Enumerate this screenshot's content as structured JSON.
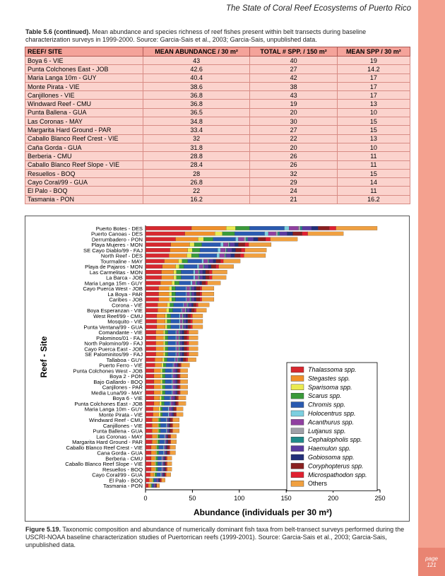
{
  "header": {
    "title": "The State of Coral Reef Ecosystems of Puerto Rico"
  },
  "page": {
    "label": "page",
    "number": "121"
  },
  "table": {
    "caption_label": "Table 5.6 (continued).",
    "caption": "Mean abundance and species richness of reef fishes present within belt transects during baseline characterization surveys in 1999-2000.  Source:  Garcia-Sais et al., 2003; Garcia-Sais, unpublished data.",
    "columns": [
      "REEF/ SITE",
      "MEAN ABUNDANCE / 30 m²",
      "TOTAL # SPP. / 150 m²",
      "MEAN SPP / 30 m²"
    ],
    "rows": [
      [
        "Boya 6 - VIE",
        "43",
        "40",
        "19"
      ],
      [
        "Punta Colchones East - JOB",
        "42.6",
        "27",
        "14.2"
      ],
      [
        "Maria Langa 10m - GUY",
        "40.4",
        "42",
        "17"
      ],
      [
        "Monte Pirata - VIE",
        "38.6",
        "38",
        "17"
      ],
      [
        "Canjillones - VIE",
        "36.8",
        "43",
        "17"
      ],
      [
        "Windward Reef - CMU",
        "36.8",
        "19",
        "13"
      ],
      [
        "Punta Ballena - GUA",
        "36.5",
        "20",
        "10"
      ],
      [
        "Las Coronas - MAY",
        "34.8",
        "30",
        "15"
      ],
      [
        "Margarita Hard Ground - PAR",
        "33.4",
        "27",
        "15"
      ],
      [
        "Caballo Blanco Reef Crest - VIE",
        "32",
        "22",
        "13"
      ],
      [
        "Caña Gorda - GUA",
        "31.8",
        "20",
        "10"
      ],
      [
        "Berberia - CMU",
        "28.8",
        "26",
        "11"
      ],
      [
        "Caballo Blanco Reef Slope - VIE",
        "28.4",
        "26",
        "11"
      ],
      [
        "Resuellos - BOQ",
        "28",
        "32",
        "15"
      ],
      [
        "Cayo Coral/99 - GUA",
        "26.8",
        "29",
        "14"
      ],
      [
        "El Palo - BOQ",
        "22",
        "24",
        "11"
      ],
      [
        "Tasmania - PON",
        "16.2",
        "21",
        "16.2"
      ]
    ]
  },
  "figure": {
    "caption_label": "Figure 5.19.",
    "caption": "Taxonomic composition and abundance of numerically dominant fish taxa from belt-transect surveys performed during the USCRI-NOAA baseline characterization studies of Puertorrican reefs (1999-2001).  Source:  Garcia-Sais et al., 2003; Garcia-Sais, unpublished data."
  },
  "chart_data": {
    "type": "stacked-barh",
    "x_label": "Abundance (individuals per 30 m²)",
    "y_label": "Reef - Site",
    "xlim": [
      0,
      250
    ],
    "xticks": [
      0,
      50,
      100,
      150,
      200,
      250
    ],
    "categories": [
      "Puerto Botes - DES",
      "Puerto Canoas - DES",
      "Derrumbadero - PON",
      "Playa Mujeres - MON",
      "SE Cayo Diablo/99 - FAJ",
      "North Reef - DES",
      "Tourmaline - MAY",
      "Playa de Pajaros - MON",
      "Las Carmelitas - MON",
      "La Barca - JOB",
      "Maria Langa 15m - GUY",
      "Cayo Puerca West - JOB",
      "La Boya - PAR",
      "Caribes - JOB",
      "Corona - VIE",
      "Boya Esperanzan - VIE",
      "West Reef/99 - CMU",
      "Mosquito - VIE",
      "Punta Ventana/99 - GUA",
      "Comandante - VIE",
      "Palominos/01 - FAJ",
      "North Palomino/99 - FAJ",
      "Cayo Puerca East - JOB",
      "SE Palominitos/99 - FAJ",
      "Tallaboa - GUY",
      "Puerto Ferro - VIE",
      "Punta Colchones West - JOB",
      "Boya 2 - PON",
      "Bajo Gallardo - BOQ",
      "Canjilones - PAR",
      "Media Luna/99 - MAY",
      "Boya 6 - VIE",
      "Punta Colchones East - JOB",
      "Maria Langa 10m - GUY",
      "Monte Pirata - VIE",
      "Windward Reef - CMU",
      "Canjillones - VIE",
      "Punta Ballena - GUA",
      "Las Coronas - MAY",
      "Margarita Hard Ground - PAR",
      "Caballo Blanco Reef Crest - VIE",
      "Cana Gorda - GUA",
      "Berberia - CMU",
      "Caballo Blanco Reef Slope - VIE",
      "Resuellos - BOQ",
      "Cayo Coral/99 - GUA",
      "El Palo - BOQ",
      "Tasmania - PON"
    ],
    "series": [
      {
        "name": "Thalassoma spp.",
        "color": "#d7282f",
        "values": [
          49,
          42,
          32,
          27,
          26,
          25,
          20,
          18,
          17,
          17,
          16,
          14,
          14,
          14,
          13,
          13,
          12,
          12,
          12,
          11,
          11,
          11,
          11,
          11,
          10,
          10,
          9,
          9,
          9,
          9,
          9,
          9,
          9,
          8,
          8,
          7,
          7,
          7,
          7,
          7,
          6,
          6,
          6,
          6,
          6,
          5,
          4,
          3
        ]
      },
      {
        "name": "Stegastes spp.",
        "color": "#f0902a",
        "values": [
          37,
          32,
          24,
          20,
          19,
          19,
          15,
          14,
          13,
          13,
          12,
          11,
          11,
          11,
          10,
          9,
          9,
          9,
          9,
          8,
          8,
          8,
          8,
          8,
          8,
          7,
          7,
          7,
          7,
          7,
          7,
          6,
          6,
          6,
          6,
          6,
          6,
          6,
          5,
          5,
          5,
          5,
          4,
          4,
          4,
          4,
          3,
          2
        ]
      },
      {
        "name": "Sparisoma spp.",
        "color": "#eaea50",
        "values": [
          10,
          8,
          6,
          5,
          5,
          5,
          4,
          4,
          3,
          3,
          3,
          3,
          3,
          3,
          3,
          3,
          2,
          2,
          2,
          2,
          2,
          2,
          2,
          2,
          2,
          2,
          2,
          2,
          2,
          2,
          2,
          2,
          2,
          2,
          2,
          1,
          1,
          1,
          1,
          1,
          1,
          1,
          1,
          1,
          1,
          1,
          1,
          1
        ]
      },
      {
        "name": "Scarus spp.",
        "color": "#3a9a3a",
        "values": [
          15,
          13,
          10,
          8,
          8,
          8,
          6,
          5,
          5,
          5,
          5,
          4,
          4,
          4,
          4,
          4,
          4,
          4,
          4,
          3,
          3,
          3,
          3,
          3,
          3,
          3,
          3,
          3,
          3,
          3,
          3,
          3,
          3,
          2,
          2,
          2,
          2,
          2,
          2,
          2,
          2,
          2,
          2,
          2,
          2,
          2,
          1,
          1
        ]
      },
      {
        "name": "Chromis spp.",
        "color": "#2a5ab0",
        "values": [
          37,
          32,
          24,
          20,
          19,
          19,
          15,
          14,
          13,
          13,
          12,
          11,
          11,
          11,
          10,
          9,
          9,
          9,
          9,
          8,
          8,
          8,
          8,
          8,
          8,
          7,
          7,
          7,
          7,
          7,
          7,
          6,
          6,
          6,
          6,
          6,
          6,
          6,
          5,
          5,
          5,
          5,
          4,
          4,
          4,
          4,
          3,
          2
        ]
      },
      {
        "name": "Holocentrus spp.",
        "color": "#7ccfe0",
        "values": [
          5,
          4,
          3,
          3,
          3,
          3,
          2,
          2,
          2,
          2,
          2,
          1,
          1,
          1,
          1,
          1,
          1,
          1,
          1,
          1,
          1,
          1,
          1,
          1,
          1,
          1,
          1,
          1,
          1,
          1,
          1,
          1,
          1,
          1,
          1,
          1,
          1,
          1,
          1,
          1,
          1,
          1,
          1,
          1,
          1,
          1,
          0,
          0
        ]
      },
      {
        "name": "Acanthurus spp.",
        "color": "#9040a0",
        "values": [
          10,
          8,
          6,
          5,
          5,
          5,
          4,
          4,
          3,
          3,
          3,
          3,
          3,
          3,
          3,
          3,
          2,
          2,
          2,
          2,
          2,
          2,
          2,
          2,
          2,
          2,
          2,
          2,
          2,
          2,
          2,
          2,
          2,
          2,
          2,
          1,
          1,
          1,
          1,
          1,
          1,
          1,
          1,
          1,
          1,
          1,
          1,
          1
        ]
      },
      {
        "name": "Lutjanus spp.",
        "color": "#a0a0a8",
        "values": [
          2,
          2,
          2,
          1,
          1,
          1,
          1,
          1,
          1,
          1,
          1,
          1,
          1,
          1,
          1,
          1,
          1,
          1,
          1,
          1,
          1,
          1,
          1,
          1,
          1,
          0,
          0,
          0,
          0,
          0,
          0,
          0,
          0,
          0,
          0,
          0,
          0,
          0,
          0,
          0,
          0,
          0,
          0,
          0,
          0,
          0,
          0,
          0
        ]
      },
      {
        "name": "Cephalopholis spp.",
        "color": "#208a8a",
        "values": [
          2,
          2,
          2,
          1,
          1,
          1,
          1,
          1,
          1,
          1,
          1,
          1,
          1,
          1,
          1,
          1,
          1,
          1,
          1,
          1,
          1,
          1,
          1,
          1,
          1,
          0,
          0,
          0,
          0,
          0,
          0,
          0,
          0,
          0,
          0,
          0,
          0,
          0,
          0,
          0,
          0,
          0,
          0,
          0,
          0,
          0,
          0,
          0
        ]
      },
      {
        "name": "Haemulon spp.",
        "color": "#5a3aa0",
        "values": [
          10,
          8,
          6,
          5,
          5,
          5,
          4,
          4,
          3,
          3,
          3,
          3,
          3,
          3,
          3,
          3,
          2,
          2,
          2,
          2,
          2,
          2,
          2,
          2,
          2,
          2,
          2,
          2,
          2,
          2,
          2,
          2,
          2,
          2,
          2,
          1,
          1,
          1,
          1,
          1,
          1,
          1,
          1,
          1,
          1,
          1,
          1,
          1
        ]
      },
      {
        "name": "Gobiosoma spp.",
        "color": "#23307a",
        "values": [
          7,
          6,
          5,
          4,
          4,
          4,
          3,
          3,
          3,
          3,
          2,
          2,
          2,
          2,
          2,
          2,
          2,
          2,
          2,
          2,
          2,
          2,
          2,
          2,
          2,
          1,
          1,
          1,
          1,
          1,
          1,
          1,
          1,
          1,
          1,
          1,
          1,
          1,
          1,
          1,
          1,
          1,
          1,
          1,
          1,
          1,
          1,
          0
        ]
      },
      {
        "name": "Coryphopterus spp.",
        "color": "#8a2020",
        "values": [
          12,
          10,
          8,
          7,
          6,
          6,
          5,
          5,
          4,
          4,
          4,
          4,
          4,
          4,
          3,
          3,
          3,
          3,
          3,
          3,
          3,
          3,
          3,
          3,
          3,
          2,
          2,
          2,
          2,
          2,
          2,
          2,
          2,
          2,
          2,
          2,
          2,
          2,
          2,
          2,
          2,
          2,
          1,
          1,
          1,
          1,
          1,
          1
        ]
      },
      {
        "name": "Microspathodon spp.",
        "color": "#e02030",
        "values": [
          7,
          6,
          5,
          4,
          4,
          4,
          3,
          3,
          3,
          3,
          2,
          2,
          2,
          2,
          2,
          2,
          2,
          2,
          2,
          2,
          2,
          2,
          2,
          2,
          2,
          1,
          1,
          1,
          1,
          1,
          1,
          1,
          1,
          1,
          1,
          1,
          1,
          1,
          1,
          1,
          1,
          1,
          1,
          1,
          1,
          1,
          1,
          0
        ]
      },
      {
        "name": "Others",
        "color": "#f0a040",
        "values": [
          44,
          38,
          29,
          24,
          23,
          23,
          18,
          16,
          16,
          15,
          14,
          13,
          13,
          13,
          12,
          11,
          11,
          11,
          11,
          10,
          10,
          10,
          10,
          10,
          9,
          9,
          8,
          8,
          8,
          8,
          8,
          8,
          8,
          7,
          7,
          7,
          7,
          7,
          6,
          6,
          6,
          6,
          5,
          5,
          5,
          5,
          4,
          3
        ]
      }
    ]
  }
}
